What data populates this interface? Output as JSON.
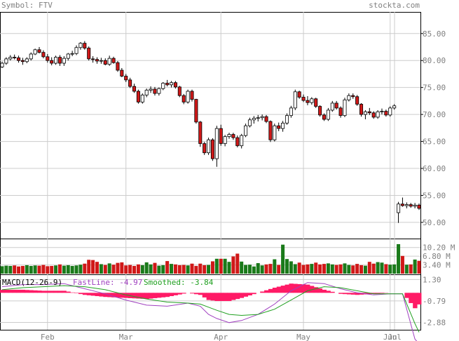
{
  "header": {
    "symbol_text": "Symbol: FTV",
    "site_text": "stockta.com"
  },
  "colors": {
    "up": "#1a7a1a",
    "down": "#d01818",
    "up_candle_fill": "#ffffff",
    "grid": "#cccccc",
    "header_text": "#808080",
    "axis_text": "#808080",
    "fast": "#a040c0",
    "smooth": "#20a020",
    "hist": "#ff1a66"
  },
  "chart_data": [
    {
      "type": "candlestick",
      "name": "price",
      "yticks": [
        85,
        80,
        75,
        70,
        65,
        60,
        55,
        50
      ],
      "ytick_labels": [
        "85.00",
        "80.00",
        "75.00",
        "70.00",
        "65.00",
        "60.00",
        "55.00",
        "50.00"
      ],
      "ylim": [
        47,
        89
      ],
      "xticks": [
        "Feb",
        "Mar",
        "Apr",
        "May",
        "Jun",
        "Jul"
      ],
      "ohlc": [
        [
          78.8,
          79.8,
          78.6,
          79.5
        ],
        [
          79.5,
          80.6,
          79.2,
          80.3
        ],
        [
          80.3,
          81.0,
          80.0,
          80.6
        ],
        [
          80.6,
          81.1,
          80.2,
          80.5
        ],
        [
          80.5,
          80.9,
          79.6,
          80.0
        ],
        [
          80.0,
          80.5,
          79.2,
          79.8
        ],
        [
          79.8,
          80.6,
          79.5,
          80.3
        ],
        [
          80.3,
          81.5,
          80.0,
          81.2
        ],
        [
          81.2,
          82.2,
          81.0,
          82.0
        ],
        [
          82.0,
          82.5,
          81.3,
          81.5
        ],
        [
          81.5,
          81.9,
          80.4,
          80.7
        ],
        [
          80.7,
          81.2,
          79.6,
          80.0
        ],
        [
          80.0,
          80.6,
          79.1,
          79.5
        ],
        [
          79.5,
          80.9,
          79.2,
          80.6
        ],
        [
          80.6,
          81.0,
          79.0,
          79.5
        ],
        [
          79.5,
          80.8,
          79.0,
          80.4
        ],
        [
          80.4,
          81.4,
          80.0,
          81.2
        ],
        [
          81.2,
          81.8,
          80.8,
          81.3
        ],
        [
          81.3,
          82.8,
          81.0,
          82.4
        ],
        [
          82.4,
          83.4,
          82.0,
          83.2
        ],
        [
          83.2,
          83.6,
          82.0,
          82.3
        ],
        [
          82.3,
          82.6,
          80.0,
          80.3
        ],
        [
          80.3,
          80.8,
          79.6,
          80.2
        ],
        [
          80.2,
          80.6,
          79.4,
          79.9
        ],
        [
          79.9,
          80.5,
          79.4,
          80.0
        ],
        [
          80.0,
          80.4,
          79.1,
          79.3
        ],
        [
          79.3,
          80.9,
          79.0,
          80.4
        ],
        [
          80.4,
          80.7,
          79.4,
          79.6
        ],
        [
          79.6,
          79.9,
          77.9,
          78.2
        ],
        [
          78.2,
          78.6,
          76.9,
          77.1
        ],
        [
          77.1,
          77.5,
          76.0,
          76.4
        ],
        [
          76.4,
          76.8,
          74.9,
          75.2
        ],
        [
          75.2,
          75.7,
          74.0,
          74.3
        ],
        [
          74.3,
          74.6,
          72.0,
          72.3
        ],
        [
          72.3,
          73.9,
          72.0,
          73.6
        ],
        [
          73.6,
          74.8,
          73.2,
          74.5
        ],
        [
          74.5,
          75.2,
          74.0,
          74.7
        ],
        [
          74.7,
          75.1,
          73.5,
          73.9
        ],
        [
          73.9,
          75.0,
          73.5,
          74.8
        ],
        [
          74.8,
          76.0,
          74.5,
          75.8
        ],
        [
          75.8,
          76.4,
          75.2,
          75.5
        ],
        [
          75.5,
          76.2,
          75.0,
          75.9
        ],
        [
          75.9,
          76.2,
          74.8,
          75.1
        ],
        [
          75.1,
          75.3,
          73.2,
          73.5
        ],
        [
          73.5,
          73.8,
          71.9,
          72.3
        ],
        [
          72.3,
          74.6,
          72.0,
          74.3
        ],
        [
          74.3,
          74.6,
          72.4,
          72.8
        ],
        [
          72.8,
          72.9,
          68.3,
          68.6
        ],
        [
          68.6,
          68.8,
          64.0,
          64.6
        ],
        [
          64.6,
          64.9,
          62.5,
          62.9
        ],
        [
          62.9,
          65.7,
          62.5,
          65.3
        ],
        [
          65.3,
          65.6,
          61.4,
          61.8
        ],
        [
          61.8,
          67.9,
          60.3,
          67.4
        ],
        [
          67.4,
          68.1,
          64.2,
          64.6
        ],
        [
          64.6,
          66.2,
          64.1,
          65.9
        ],
        [
          65.9,
          66.6,
          65.5,
          66.3
        ],
        [
          66.3,
          66.6,
          65.3,
          65.7
        ],
        [
          65.7,
          66.1,
          63.9,
          64.2
        ],
        [
          64.2,
          66.4,
          63.7,
          66.1
        ],
        [
          66.1,
          68.3,
          65.8,
          67.9
        ],
        [
          67.9,
          69.4,
          67.6,
          69.0
        ],
        [
          69.0,
          69.7,
          68.3,
          69.3
        ],
        [
          69.3,
          69.9,
          68.7,
          69.4
        ],
        [
          69.4,
          70.0,
          68.9,
          69.6
        ],
        [
          69.6,
          69.9,
          68.4,
          68.7
        ],
        [
          68.7,
          68.9,
          64.9,
          65.3
        ],
        [
          65.3,
          68.3,
          65.0,
          67.9
        ],
        [
          67.9,
          68.5,
          66.9,
          67.4
        ],
        [
          67.4,
          68.8,
          66.8,
          68.4
        ],
        [
          68.4,
          70.2,
          68.1,
          69.8
        ],
        [
          69.8,
          71.6,
          69.4,
          71.2
        ],
        [
          71.2,
          74.6,
          70.8,
          74.2
        ],
        [
          74.2,
          74.4,
          72.9,
          73.2
        ],
        [
          73.2,
          73.7,
          72.3,
          72.6
        ],
        [
          72.6,
          73.4,
          71.7,
          72.2
        ],
        [
          72.2,
          73.2,
          71.8,
          72.9
        ],
        [
          72.9,
          73.1,
          71.2,
          71.5
        ],
        [
          71.5,
          71.7,
          69.6,
          69.9
        ],
        [
          69.9,
          70.2,
          68.8,
          69.1
        ],
        [
          69.1,
          71.2,
          68.8,
          70.8
        ],
        [
          70.8,
          72.5,
          70.5,
          72.1
        ],
        [
          72.1,
          72.5,
          70.9,
          71.2
        ],
        [
          71.2,
          71.5,
          69.4,
          69.8
        ],
        [
          69.8,
          73.1,
          69.5,
          72.7
        ],
        [
          72.7,
          73.9,
          72.4,
          73.5
        ],
        [
          73.5,
          73.9,
          72.9,
          73.3
        ],
        [
          73.3,
          73.6,
          71.6,
          71.9
        ],
        [
          71.9,
          72.1,
          69.6,
          70.0
        ],
        [
          70.0,
          70.8,
          69.1,
          70.5
        ],
        [
          70.5,
          71.2,
          69.9,
          70.3
        ],
        [
          70.3,
          70.6,
          69.2,
          69.5
        ],
        [
          69.5,
          70.8,
          69.2,
          70.5
        ],
        [
          70.5,
          71.1,
          70.0,
          70.6
        ],
        [
          70.6,
          70.9,
          69.6,
          69.9
        ],
        [
          69.9,
          71.5,
          69.6,
          71.2
        ],
        [
          71.2,
          71.9,
          70.9,
          71.6
        ],
        [
          51.8,
          53.8,
          49.9,
          53.4
        ],
        [
          53.4,
          54.6,
          52.9,
          53.1
        ],
        [
          53.1,
          53.7,
          52.6,
          53.3
        ],
        [
          53.3,
          53.6,
          52.7,
          53.0
        ],
        [
          53.0,
          53.6,
          52.6,
          53.2
        ],
        [
          53.2,
          53.5,
          52.3,
          52.6
        ]
      ]
    },
    {
      "type": "bar",
      "name": "volume",
      "yticks": [
        10.2,
        6.8,
        3.4
      ],
      "ytick_labels": [
        "10.20 M",
        "6.80 M",
        "3.40 M"
      ],
      "ylim": [
        0,
        13.4
      ],
      "values": [
        2.9,
        3.1,
        3.0,
        3.2,
        2.8,
        3.0,
        3.3,
        3.0,
        3.2,
        3.1,
        3.4,
        2.9,
        3.0,
        3.2,
        3.6,
        3.1,
        3.3,
        3.0,
        3.2,
        3.5,
        3.9,
        5.4,
        5.3,
        4.6,
        3.7,
        3.4,
        4.0,
        3.5,
        4.2,
        4.4,
        3.2,
        3.4,
        3.0,
        3.6,
        3.3,
        4.4,
        3.6,
        4.2,
        3.1,
        3.3,
        4.9,
        3.8,
        3.6,
        3.3,
        3.4,
        3.2,
        3.9,
        3.0,
        3.9,
        3.3,
        3.4,
        4.8,
        5.8,
        5.8,
        5.8,
        4.6,
        6.7,
        7.8,
        4.7,
        3.4,
        3.5,
        2.8,
        4.1,
        3.2,
        3.6,
        3.8,
        5.6,
        3.4,
        11.3,
        5.7,
        4.8,
        3.7,
        4.3,
        3.4,
        3.6,
        3.8,
        4.3,
        3.6,
        3.8,
        4.0,
        3.6,
        3.4,
        3.6,
        4.0,
        3.4,
        3.2,
        3.8,
        3.3,
        3.1,
        4.6,
        3.9,
        4.5,
        4.3,
        3.7,
        3.5,
        3.6,
        11.5,
        6.9,
        3.5,
        3.6,
        5.5,
        5.0
      ]
    },
    {
      "type": "line",
      "name": "macd",
      "yticks": [
        1.3,
        -0.79,
        -2.88
      ],
      "ytick_labels": [
        "1.30",
        "-0.79",
        "-2.88"
      ],
      "ylim": [
        -3.6,
        1.8
      ],
      "title": "MACD(12-26-9)",
      "fast_label": "FastLine: -4.97",
      "smooth_label": "Smoothed: -3.84",
      "x": [
        0,
        5,
        10,
        15,
        20,
        25,
        30,
        35,
        40,
        45,
        48,
        50,
        52,
        55,
        58,
        62,
        66,
        70,
        74,
        78,
        82,
        86,
        90,
        94,
        97,
        100,
        101
      ],
      "fastline": [
        0.6,
        0.8,
        0.8,
        0.9,
        0.4,
        -0.1,
        -0.7,
        -1.2,
        -1.3,
        -1.0,
        -1.3,
        -2.1,
        -2.5,
        -2.9,
        -2.7,
        -2.1,
        -1.1,
        0.2,
        1.0,
        0.9,
        0.4,
        0.0,
        -0.2,
        -0.1,
        -0.1,
        -4.5,
        -4.97
      ],
      "smoothed": [
        0.3,
        0.5,
        0.6,
        0.7,
        0.6,
        0.3,
        -0.2,
        -0.6,
        -0.9,
        -1.0,
        -1.1,
        -1.4,
        -1.7,
        -2.1,
        -2.2,
        -2.1,
        -1.6,
        -0.7,
        0.2,
        0.6,
        0.5,
        0.2,
        -0.1,
        -0.1,
        -0.1,
        -3.0,
        -3.84
      ]
    }
  ]
}
